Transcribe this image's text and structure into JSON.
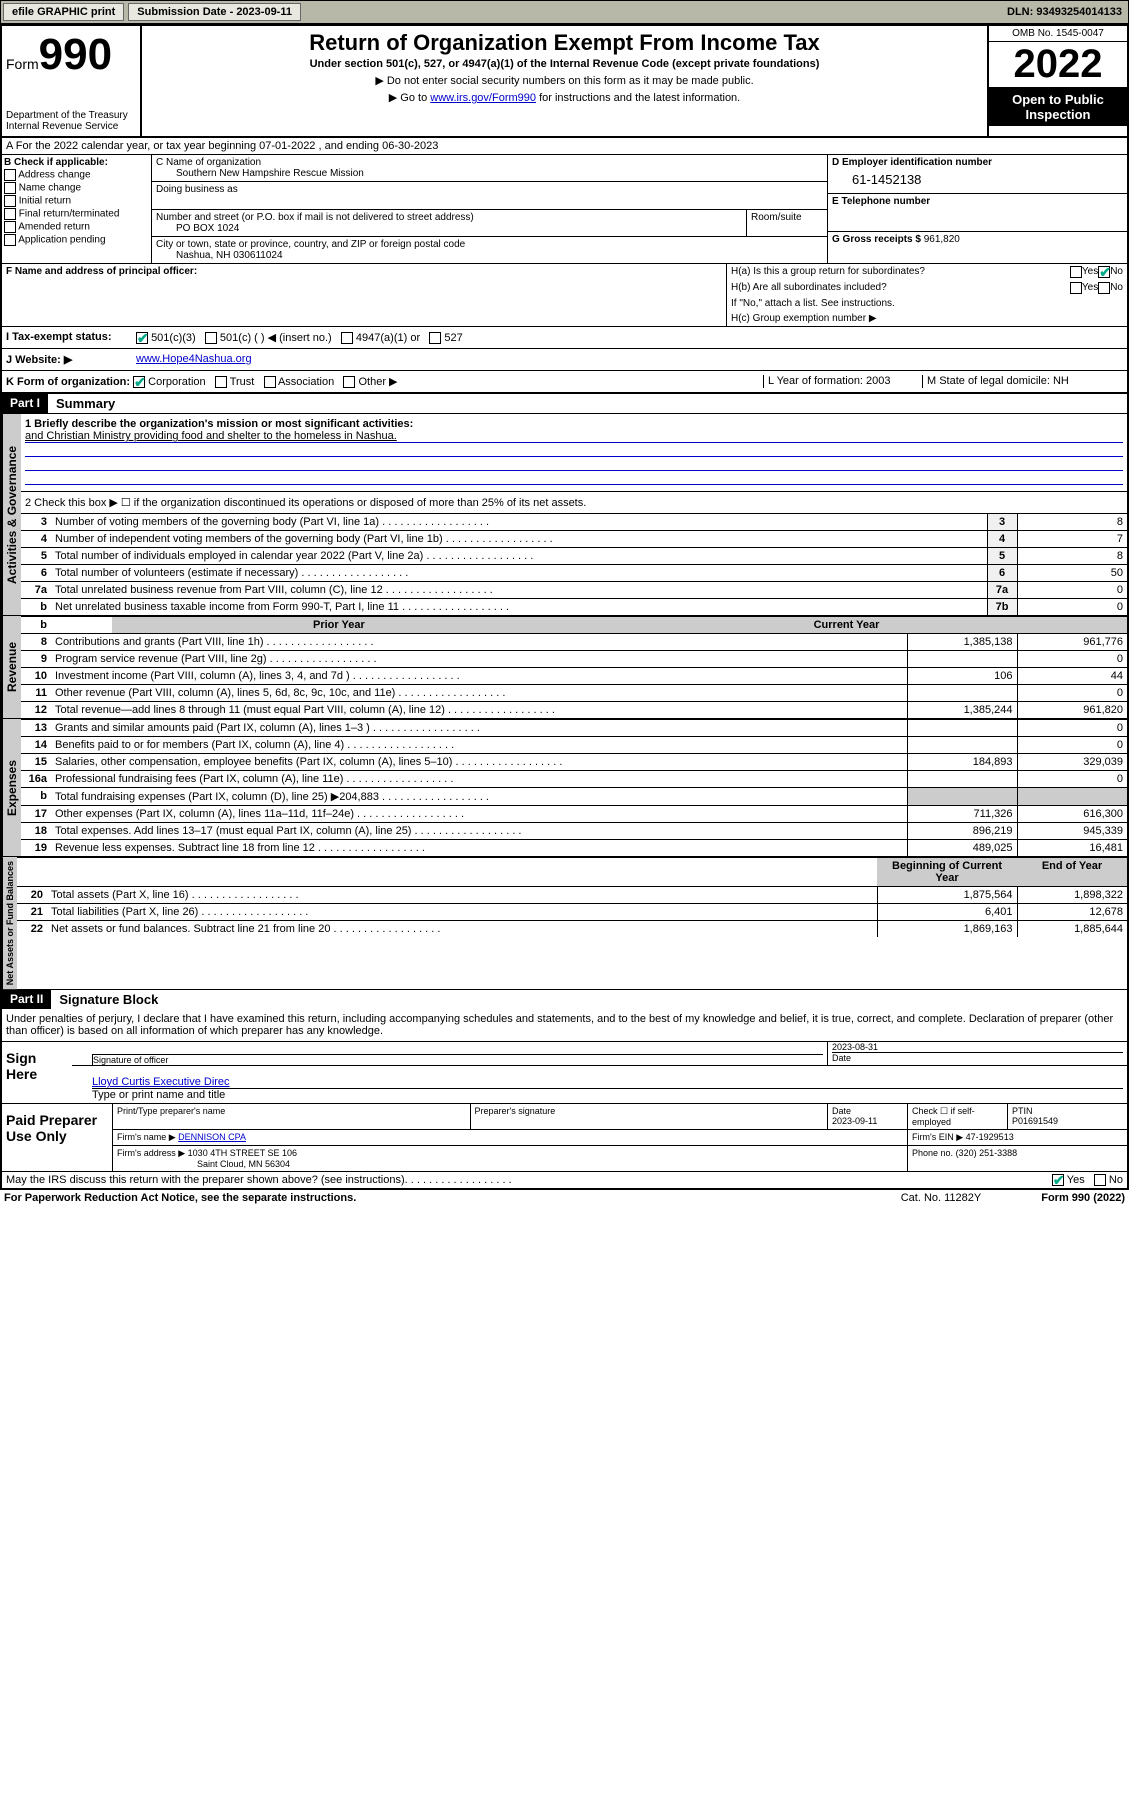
{
  "topbar": {
    "efile_btn": "efile GRAPHIC print",
    "submission_label": "Submission Date - 2023-09-11",
    "dln": "DLN: 93493254014133"
  },
  "header": {
    "form_label": "Form",
    "form_num": "990",
    "dept": "Department of the Treasury",
    "irs": "Internal Revenue Service",
    "title": "Return of Organization Exempt From Income Tax",
    "subtitle": "Under section 501(c), 527, or 4947(a)(1) of the Internal Revenue Code (except private foundations)",
    "note1": "▶ Do not enter social security numbers on this form as it may be made public.",
    "note2_pre": "▶ Go to ",
    "note2_link": "www.irs.gov/Form990",
    "note2_post": " for instructions and the latest information.",
    "omb": "OMB No. 1545-0047",
    "year": "2022",
    "open": "Open to Public Inspection"
  },
  "section_a": {
    "text": "A For the 2022 calendar year, or tax year beginning 07-01-2022   , and ending 06-30-2023"
  },
  "section_b": {
    "label": "B Check if applicable:",
    "opts": [
      "Address change",
      "Name change",
      "Initial return",
      "Final return/terminated",
      "Amended return",
      "Application pending"
    ]
  },
  "section_c": {
    "name_label": "C Name of organization",
    "name": "Southern New Hampshire Rescue Mission",
    "dba_label": "Doing business as",
    "addr_label": "Number and street (or P.O. box if mail is not delivered to street address)",
    "addr": "PO BOX 1024",
    "room_label": "Room/suite",
    "city_label": "City or town, state or province, country, and ZIP or foreign postal code",
    "city": "Nashua, NH  030611024"
  },
  "section_d": {
    "label": "D Employer identification number",
    "ein": "61-1452138",
    "e_label": "E Telephone number",
    "g_label": "G Gross receipts $",
    "g_val": "961,820"
  },
  "section_f": {
    "label": "F Name and address of principal officer:"
  },
  "section_h": {
    "ha": "H(a)  Is this a group return for subordinates?",
    "hb": "H(b)  Are all subordinates included?",
    "hb_note": "If \"No,\" attach a list. See instructions.",
    "hc": "H(c)  Group exemption number ▶"
  },
  "section_i": {
    "label": "I   Tax-exempt status:",
    "opts": [
      "501(c)(3)",
      "501(c) ( ) ◀ (insert no.)",
      "4947(a)(1) or",
      "527"
    ]
  },
  "section_j": {
    "label": "J   Website: ▶",
    "val": "www.Hope4Nashua.org"
  },
  "section_k": {
    "label": "K Form of organization:",
    "opts": [
      "Corporation",
      "Trust",
      "Association",
      "Other ▶"
    ],
    "l": "L Year of formation: 2003",
    "m": "M State of legal domicile: NH"
  },
  "part1": {
    "head": "Part I",
    "title": "Summary",
    "mission_label": "1  Briefly describe the organization's mission or most significant activities:",
    "mission": "and Christian Ministry providing food and shelter to the homeless in Nashua.",
    "line2": "2  Check this box ▶ ☐  if the organization discontinued its operations or disposed of more than 25% of its net assets.",
    "gov_label": "Activities & Governance",
    "rev_label": "Revenue",
    "exp_label": "Expenses",
    "net_label": "Net Assets or Fund Balances",
    "prior_year": "Prior Year",
    "current_year": "Current Year",
    "beg_year": "Beginning of Current Year",
    "end_year": "End of Year",
    "rows_gov": [
      {
        "n": "3",
        "t": "Number of voting members of the governing body (Part VI, line 1a)",
        "box": "3",
        "v": "8"
      },
      {
        "n": "4",
        "t": "Number of independent voting members of the governing body (Part VI, line 1b)",
        "box": "4",
        "v": "7"
      },
      {
        "n": "5",
        "t": "Total number of individuals employed in calendar year 2022 (Part V, line 2a)",
        "box": "5",
        "v": "8"
      },
      {
        "n": "6",
        "t": "Total number of volunteers (estimate if necessary)",
        "box": "6",
        "v": "50"
      },
      {
        "n": "7a",
        "t": "Total unrelated business revenue from Part VIII, column (C), line 12",
        "box": "7a",
        "v": "0"
      },
      {
        "n": "b",
        "t": "Net unrelated business taxable income from Form 990-T, Part I, line 11",
        "box": "7b",
        "v": "0"
      }
    ],
    "rows_rev": [
      {
        "n": "8",
        "t": "Contributions and grants (Part VIII, line 1h)",
        "p": "1,385,138",
        "c": "961,776"
      },
      {
        "n": "9",
        "t": "Program service revenue (Part VIII, line 2g)",
        "p": "",
        "c": "0"
      },
      {
        "n": "10",
        "t": "Investment income (Part VIII, column (A), lines 3, 4, and 7d )",
        "p": "106",
        "c": "44"
      },
      {
        "n": "11",
        "t": "Other revenue (Part VIII, column (A), lines 5, 6d, 8c, 9c, 10c, and 11e)",
        "p": "",
        "c": "0"
      },
      {
        "n": "12",
        "t": "Total revenue—add lines 8 through 11 (must equal Part VIII, column (A), line 12)",
        "p": "1,385,244",
        "c": "961,820"
      }
    ],
    "rows_exp": [
      {
        "n": "13",
        "t": "Grants and similar amounts paid (Part IX, column (A), lines 1–3 )",
        "p": "",
        "c": "0"
      },
      {
        "n": "14",
        "t": "Benefits paid to or for members (Part IX, column (A), line 4)",
        "p": "",
        "c": "0"
      },
      {
        "n": "15",
        "t": "Salaries, other compensation, employee benefits (Part IX, column (A), lines 5–10)",
        "p": "184,893",
        "c": "329,039"
      },
      {
        "n": "16a",
        "t": "Professional fundraising fees (Part IX, column (A), line 11e)",
        "p": "",
        "c": "0"
      },
      {
        "n": "b",
        "t": "Total fundraising expenses (Part IX, column (D), line 25) ▶204,883",
        "p": "gray",
        "c": "gray"
      },
      {
        "n": "17",
        "t": "Other expenses (Part IX, column (A), lines 11a–11d, 11f–24e)",
        "p": "711,326",
        "c": "616,300"
      },
      {
        "n": "18",
        "t": "Total expenses. Add lines 13–17 (must equal Part IX, column (A), line 25)",
        "p": "896,219",
        "c": "945,339"
      },
      {
        "n": "19",
        "t": "Revenue less expenses. Subtract line 18 from line 12",
        "p": "489,025",
        "c": "16,481"
      }
    ],
    "rows_net": [
      {
        "n": "20",
        "t": "Total assets (Part X, line 16)",
        "p": "1,875,564",
        "c": "1,898,322"
      },
      {
        "n": "21",
        "t": "Total liabilities (Part X, line 26)",
        "p": "6,401",
        "c": "12,678"
      },
      {
        "n": "22",
        "t": "Net assets or fund balances. Subtract line 21 from line 20",
        "p": "1,869,163",
        "c": "1,885,644"
      }
    ]
  },
  "part2": {
    "head": "Part II",
    "title": "Signature Block",
    "declaration": "Under penalties of perjury, I declare that I have examined this return, including accompanying schedules and statements, and to the best of my knowledge and belief, it is true, correct, and complete. Declaration of preparer (other than officer) is based on all information of which preparer has any knowledge.",
    "sign_here": "Sign Here",
    "sig_officer": "Signature of officer",
    "date_label": "Date",
    "date_val": "2023-08-31",
    "name_title": "Lloyd Curtis  Executive Direc",
    "name_title_label": "Type or print name and title",
    "paid": "Paid Preparer Use Only",
    "prep_name_label": "Print/Type preparer's name",
    "prep_sig_label": "Preparer's signature",
    "prep_date_label": "Date",
    "prep_date": "2023-09-11",
    "check_if": "Check ☐ if self-employed",
    "ptin_label": "PTIN",
    "ptin": "P01691549",
    "firm_name_label": "Firm's name    ▶",
    "firm_name": "DENNISON CPA",
    "firm_ein_label": "Firm's EIN ▶",
    "firm_ein": "47-1929513",
    "firm_addr_label": "Firm's address ▶",
    "firm_addr1": "1030 4TH STREET SE 106",
    "firm_addr2": "Saint Cloud, MN  56304",
    "phone_label": "Phone no.",
    "phone": "(320) 251-3388",
    "may_irs": "May the IRS discuss this return with the preparer shown above? (see instructions)"
  },
  "footer": {
    "left": "For Paperwork Reduction Act Notice, see the separate instructions.",
    "mid": "Cat. No. 11282Y",
    "right": "Form 990 (2022)"
  }
}
